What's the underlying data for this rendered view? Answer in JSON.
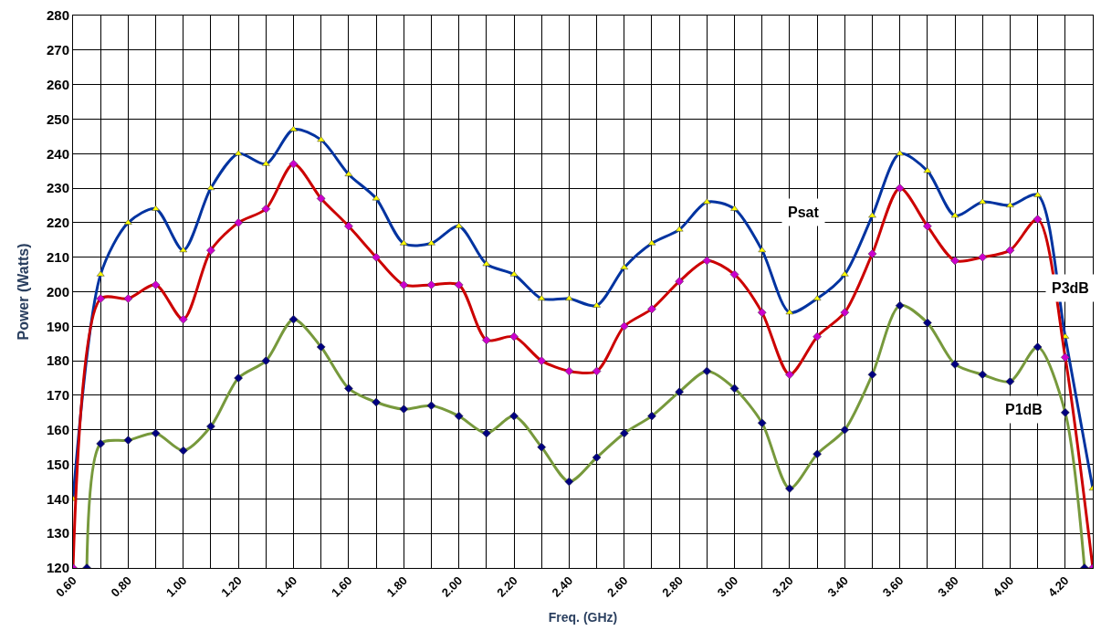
{
  "chart_data": {
    "type": "line",
    "xlabel": "Freq. (GHz)",
    "ylabel": "Power (Watts)",
    "xlim": [
      0.6,
      4.3
    ],
    "ylim": [
      120,
      280
    ],
    "xticks": [
      {
        "value": 0.6,
        "label": "0.60"
      },
      {
        "value": 0.7,
        "label": null
      },
      {
        "value": 0.8,
        "label": "0.80"
      },
      {
        "value": 0.9,
        "label": null
      },
      {
        "value": 1.0,
        "label": "1.00"
      },
      {
        "value": 1.1,
        "label": null
      },
      {
        "value": 1.2,
        "label": "1.20"
      },
      {
        "value": 1.3,
        "label": null
      },
      {
        "value": 1.4,
        "label": "1.40"
      },
      {
        "value": 1.5,
        "label": null
      },
      {
        "value": 1.6,
        "label": "1.60"
      },
      {
        "value": 1.7,
        "label": null
      },
      {
        "value": 1.8,
        "label": "1.80"
      },
      {
        "value": 1.9,
        "label": null
      },
      {
        "value": 2.0,
        "label": "2.00"
      },
      {
        "value": 2.1,
        "label": null
      },
      {
        "value": 2.2,
        "label": "2.20"
      },
      {
        "value": 2.3,
        "label": null
      },
      {
        "value": 2.4,
        "label": "2.40"
      },
      {
        "value": 2.5,
        "label": null
      },
      {
        "value": 2.6,
        "label": "2.60"
      },
      {
        "value": 2.7,
        "label": null
      },
      {
        "value": 2.8,
        "label": "2.80"
      },
      {
        "value": 2.9,
        "label": null
      },
      {
        "value": 3.0,
        "label": "3.00"
      },
      {
        "value": 3.1,
        "label": null
      },
      {
        "value": 3.2,
        "label": "3.20"
      },
      {
        "value": 3.3,
        "label": null
      },
      {
        "value": 3.4,
        "label": "3.40"
      },
      {
        "value": 3.5,
        "label": null
      },
      {
        "value": 3.6,
        "label": "3.60"
      },
      {
        "value": 3.7,
        "label": null
      },
      {
        "value": 3.8,
        "label": "3.80"
      },
      {
        "value": 3.9,
        "label": null
      },
      {
        "value": 4.0,
        "label": "4.00"
      },
      {
        "value": 4.1,
        "label": null
      },
      {
        "value": 4.2,
        "label": "4.20"
      },
      {
        "value": 4.3,
        "label": null
      }
    ],
    "yticks": [
      120,
      130,
      140,
      150,
      160,
      170,
      180,
      190,
      200,
      210,
      220,
      230,
      240,
      250,
      260,
      270,
      280
    ],
    "grid": true,
    "legend": false,
    "series": [
      {
        "name": "Psat",
        "color": "#0033a0",
        "marker": "triangle",
        "x": [
          0.6,
          0.7,
          0.8,
          0.9,
          1.0,
          1.1,
          1.2,
          1.3,
          1.4,
          1.5,
          1.6,
          1.7,
          1.8,
          1.9,
          2.0,
          2.1,
          2.2,
          2.3,
          2.4,
          2.5,
          2.6,
          2.7,
          2.8,
          2.9,
          3.0,
          3.1,
          3.2,
          3.3,
          3.4,
          3.5,
          3.6,
          3.7,
          3.8,
          3.9,
          4.0,
          4.1,
          4.2,
          4.3
        ],
        "values": [
          140,
          205,
          220,
          224,
          212,
          230,
          240,
          237,
          247,
          244,
          234,
          227,
          214,
          214,
          219,
          208,
          205,
          198,
          198,
          196,
          207,
          214,
          218,
          226,
          224,
          212,
          194,
          198,
          205,
          222,
          240,
          235,
          222,
          226,
          225,
          228,
          187,
          143
        ]
      },
      {
        "name": "P3dB",
        "color": "#cc0000",
        "marker": "diamond",
        "x": [
          0.6,
          0.7,
          0.8,
          0.9,
          1.0,
          1.1,
          1.2,
          1.3,
          1.4,
          1.5,
          1.6,
          1.7,
          1.8,
          1.9,
          2.0,
          2.1,
          2.2,
          2.3,
          2.4,
          2.5,
          2.6,
          2.7,
          2.8,
          2.9,
          3.0,
          3.1,
          3.2,
          3.3,
          3.4,
          3.5,
          3.6,
          3.7,
          3.8,
          3.9,
          4.0,
          4.1,
          4.2,
          4.3
        ],
        "values": [
          120,
          198,
          198,
          202,
          192,
          212,
          220,
          224,
          237,
          227,
          219,
          210,
          202,
          202,
          202,
          186,
          187,
          180,
          177,
          177,
          190,
          195,
          203,
          209,
          205,
          194,
          176,
          187,
          194,
          211,
          230,
          219,
          209,
          210,
          212,
          221,
          181,
          120
        ]
      },
      {
        "name": "P1dB",
        "color": "#77993c",
        "marker": "diamond",
        "x": [
          0.65,
          0.7,
          0.8,
          0.9,
          1.0,
          1.1,
          1.2,
          1.3,
          1.4,
          1.5,
          1.6,
          1.7,
          1.8,
          1.9,
          2.0,
          2.1,
          2.2,
          2.3,
          2.4,
          2.5,
          2.6,
          2.7,
          2.8,
          2.9,
          3.0,
          3.1,
          3.2,
          3.3,
          3.4,
          3.5,
          3.6,
          3.7,
          3.8,
          3.9,
          4.0,
          4.1,
          4.2,
          4.27
        ],
        "values": [
          120,
          156,
          157,
          159,
          154,
          161,
          175,
          180,
          192,
          184,
          172,
          168,
          166,
          167,
          164,
          159,
          164,
          155,
          145,
          152,
          159,
          164,
          171,
          177,
          172,
          162,
          143,
          153,
          160,
          176,
          196,
          191,
          179,
          176,
          174,
          184,
          165,
          120
        ]
      }
    ]
  }
}
